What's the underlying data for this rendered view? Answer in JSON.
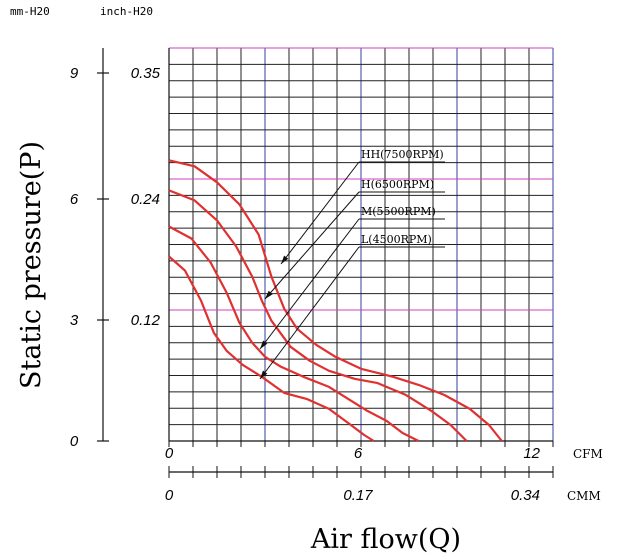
{
  "chart_data": {
    "type": "line",
    "ylabel": "Static pressure(P)",
    "xlabel": "Air flow(Q)",
    "y_unit_mm": "mm-H20",
    "y_unit_inch": "inch-H20",
    "y_mm_ticks": [
      "0",
      "3",
      "6",
      "9"
    ],
    "y_inch_ticks": [
      "0.12",
      "0.24",
      "0.35"
    ],
    "x_cfm_unit": "CFM",
    "x_cfm_ticks": [
      "0",
      "6",
      "12"
    ],
    "x_cmm_unit": "CMM",
    "x_cmm_ticks": [
      "0",
      "0.17",
      "0.34"
    ],
    "xlim_cfm": [
      0,
      12
    ],
    "ylim_mmH2O": [
      0,
      9
    ],
    "grid": true,
    "series": [
      {
        "name": "HH(7500RPM)",
        "color": "#e03030",
        "points": [
          [
            0,
            7.0
          ],
          [
            0.8,
            6.85
          ],
          [
            1.5,
            6.45
          ],
          [
            2.2,
            5.9
          ],
          [
            2.8,
            5.15
          ],
          [
            3.2,
            4.1
          ],
          [
            3.6,
            3.3
          ],
          [
            4.0,
            2.8
          ],
          [
            4.6,
            2.4
          ],
          [
            5.2,
            2.1
          ],
          [
            6.0,
            1.8
          ],
          [
            7.0,
            1.6
          ],
          [
            7.8,
            1.4
          ],
          [
            8.6,
            1.15
          ],
          [
            9.4,
            0.8
          ],
          [
            10.0,
            0.4
          ],
          [
            10.4,
            0.0
          ]
        ]
      },
      {
        "name": "H(6500RPM)",
        "color": "#e03030",
        "points": [
          [
            0,
            6.25
          ],
          [
            0.8,
            6.0
          ],
          [
            1.5,
            5.5
          ],
          [
            2.1,
            4.85
          ],
          [
            2.6,
            4.1
          ],
          [
            2.9,
            3.5
          ],
          [
            3.2,
            3.0
          ],
          [
            3.8,
            2.35
          ],
          [
            4.4,
            2.0
          ],
          [
            5.0,
            1.75
          ],
          [
            5.8,
            1.55
          ],
          [
            6.5,
            1.45
          ],
          [
            7.4,
            1.15
          ],
          [
            8.2,
            0.75
          ],
          [
            8.8,
            0.4
          ],
          [
            9.3,
            0.0
          ]
        ]
      },
      {
        "name": "M(5500RPM)",
        "color": "#e03030",
        "points": [
          [
            0,
            5.35
          ],
          [
            0.7,
            5.05
          ],
          [
            1.3,
            4.45
          ],
          [
            1.8,
            3.7
          ],
          [
            2.2,
            2.95
          ],
          [
            2.6,
            2.45
          ],
          [
            3.0,
            2.1
          ],
          [
            3.5,
            1.85
          ],
          [
            4.2,
            1.6
          ],
          [
            5.0,
            1.35
          ],
          [
            5.6,
            1.05
          ],
          [
            6.2,
            0.75
          ],
          [
            6.8,
            0.5
          ],
          [
            7.3,
            0.2
          ],
          [
            7.8,
            0.0
          ]
        ]
      },
      {
        "name": "L(4500RPM)",
        "color": "#e03030",
        "points": [
          [
            0,
            4.6
          ],
          [
            0.5,
            4.25
          ],
          [
            1.0,
            3.5
          ],
          [
            1.4,
            2.7
          ],
          [
            1.8,
            2.25
          ],
          [
            2.3,
            1.9
          ],
          [
            2.9,
            1.6
          ],
          [
            3.6,
            1.2
          ],
          [
            4.3,
            1.05
          ],
          [
            5.0,
            0.8
          ],
          [
            5.6,
            0.45
          ],
          [
            6.1,
            0.15
          ],
          [
            6.4,
            0.0
          ]
        ]
      }
    ]
  }
}
